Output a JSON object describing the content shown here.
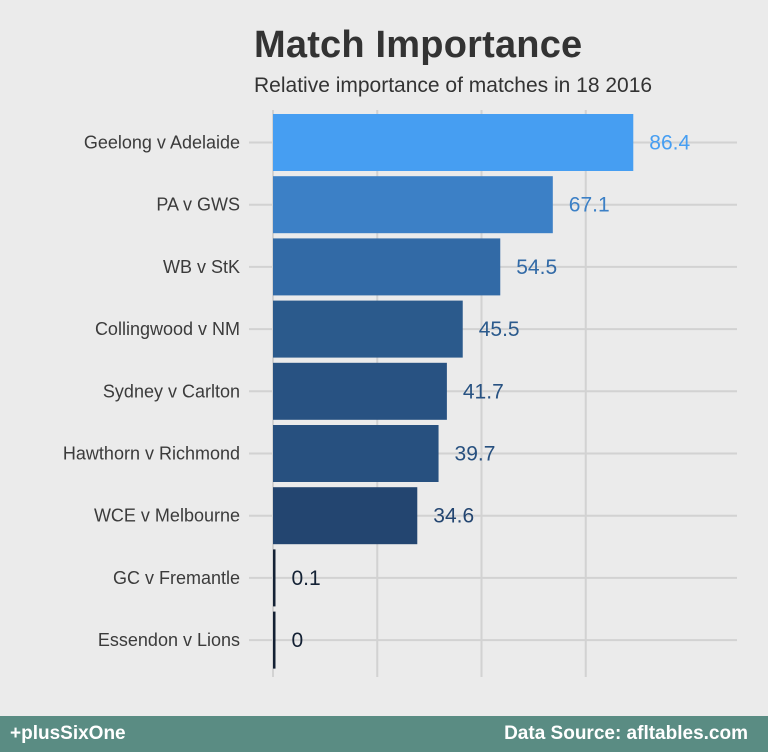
{
  "chart_data": {
    "type": "bar",
    "orientation": "horizontal",
    "title": "Match Importance",
    "subtitle": "Relative importance of matches in 18 2016",
    "categories": [
      "Geelong v Adelaide",
      "PA v GWS",
      "WB v StK",
      "Collingwood v NM",
      "Sydney v Carlton",
      "Hawthorn v Richmond",
      "WCE v Melbourne",
      "GC v Fremantle",
      "Essendon v Lions"
    ],
    "values": [
      86.4,
      67.1,
      54.5,
      45.5,
      41.7,
      39.7,
      34.6,
      0.1,
      0
    ],
    "value_labels": [
      "86.4",
      "67.1",
      "54.5",
      "45.5",
      "41.7",
      "39.7",
      "34.6",
      "0.1",
      "0"
    ],
    "bar_colors": [
      "#469ef2",
      "#3c80c6",
      "#326aa6",
      "#2b5a8c",
      "#285282",
      "#27507f",
      "#234570",
      "#142235",
      "#132033"
    ],
    "label_colors": [
      "#469ef2",
      "#3c80c6",
      "#326aa6",
      "#2b5a8c",
      "#285282",
      "#27507f",
      "#234570",
      "#142235",
      "#132033"
    ],
    "xlim": [
      0,
      100
    ],
    "x_gridlines": [
      0,
      25,
      50,
      75
    ],
    "x_tick_labels_shown": false,
    "grid": true,
    "legend": "none"
  },
  "footer": {
    "left": "+plusSixOne",
    "right": "Data Source: afltables.com"
  }
}
